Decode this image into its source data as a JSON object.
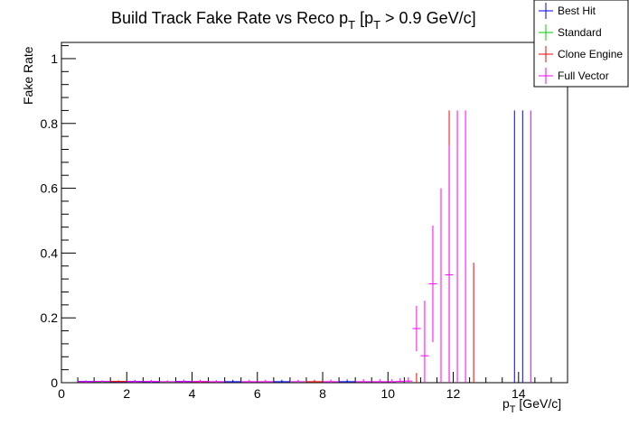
{
  "chart_data": {
    "type": "scatter",
    "title": {
      "main": "Build Track Fake Rate vs Reco p",
      "sub1": "T",
      "mid": " [p",
      "sub2": "T",
      "end": " > 0.9 GeV/c]"
    },
    "xlabel": {
      "main": "p",
      "sub": "T",
      "unit": " [GeV/c]"
    },
    "ylabel": "Fake Rate",
    "xlim": [
      0,
      15.5
    ],
    "ylim": [
      0,
      1.05
    ],
    "xticks": [
      "0",
      "2",
      "4",
      "6",
      "8",
      "10",
      "12",
      "14"
    ],
    "yticks": [
      "0",
      "0.2",
      "0.4",
      "0.6",
      "0.8",
      "1"
    ],
    "xtick_values": [
      0,
      2,
      4,
      6,
      8,
      10,
      12,
      14
    ],
    "ytick_values": [
      0,
      0.2,
      0.4,
      0.6,
      0.8,
      1.0
    ],
    "legend_position": "top-right",
    "series": [
      {
        "name": "Best Hit",
        "color": "#0000ff",
        "points": [
          {
            "x": 0.75,
            "y": 0.004,
            "xerr": 0.25,
            "yerr": 0.003
          },
          {
            "x": 1.25,
            "y": 0.004,
            "xerr": 0.25,
            "yerr": 0.003
          },
          {
            "x": 1.75,
            "y": 0.003,
            "xerr": 0.25,
            "yerr": 0.003
          },
          {
            "x": 2.25,
            "y": 0.004,
            "xerr": 0.25,
            "yerr": 0.004
          },
          {
            "x": 2.75,
            "y": 0.003,
            "xerr": 0.25,
            "yerr": 0.004
          },
          {
            "x": 3.75,
            "y": 0.004,
            "xerr": 0.25,
            "yerr": 0.005
          },
          {
            "x": 5.25,
            "y": 0.003,
            "xerr": 0.25,
            "yerr": 0.006
          },
          {
            "x": 6.75,
            "y": 0.003,
            "xerr": 0.25,
            "yerr": 0.006
          },
          {
            "x": 8.75,
            "y": 0.003,
            "xerr": 0.25,
            "yerr": 0.007
          },
          {
            "x": 13.875,
            "y": 0,
            "xerr": 0,
            "yerr": 0.84
          },
          {
            "x": 14.125,
            "y": 0,
            "xerr": 0,
            "yerr": 0.84
          }
        ]
      },
      {
        "name": "Standard",
        "color": "#00cc00",
        "points": [
          {
            "x": 1.25,
            "y": 0.003,
            "xerr": 0.25,
            "yerr": 0.003
          },
          {
            "x": 3.25,
            "y": 0.002,
            "xerr": 0.25,
            "yerr": 0.004
          },
          {
            "x": 7.25,
            "y": 0.002,
            "xerr": 0.25,
            "yerr": 0.006
          }
        ]
      },
      {
        "name": "Clone Engine",
        "color": "#ff0000",
        "points": [
          {
            "x": 1.75,
            "y": 0.004,
            "xerr": 0.25,
            "yerr": 0.003
          },
          {
            "x": 4.25,
            "y": 0.003,
            "xerr": 0.25,
            "yerr": 0.005
          },
          {
            "x": 7.75,
            "y": 0.003,
            "xerr": 0.25,
            "yerr": 0.006
          },
          {
            "x": 10.875,
            "y": 0,
            "xerr": 0,
            "yerr": 0.03
          },
          {
            "x": 11.875,
            "y": 0,
            "xerr": 0,
            "yerr": 0.84
          },
          {
            "x": 12.625,
            "y": 0,
            "xerr": 0,
            "yerr": 0.37
          }
        ]
      },
      {
        "name": "Full Vector",
        "color": "#ff00ff",
        "points": [
          {
            "x": 0.75,
            "y": 0.003,
            "xerr": 0.25,
            "yerr": 0.003
          },
          {
            "x": 1.25,
            "y": 0.004,
            "xerr": 0.25,
            "yerr": 0.003
          },
          {
            "x": 2.25,
            "y": 0.003,
            "xerr": 0.25,
            "yerr": 0.004
          },
          {
            "x": 2.75,
            "y": 0.004,
            "xerr": 0.25,
            "yerr": 0.004
          },
          {
            "x": 3.25,
            "y": 0.003,
            "xerr": 0.25,
            "yerr": 0.004
          },
          {
            "x": 3.75,
            "y": 0.003,
            "xerr": 0.25,
            "yerr": 0.005
          },
          {
            "x": 4.25,
            "y": 0.004,
            "xerr": 0.25,
            "yerr": 0.005
          },
          {
            "x": 4.75,
            "y": 0.003,
            "xerr": 0.25,
            "yerr": 0.005
          },
          {
            "x": 5.75,
            "y": 0.003,
            "xerr": 0.25,
            "yerr": 0.006
          },
          {
            "x": 6.25,
            "y": 0.003,
            "xerr": 0.25,
            "yerr": 0.006
          },
          {
            "x": 7.25,
            "y": 0.003,
            "xerr": 0.25,
            "yerr": 0.006
          },
          {
            "x": 8.25,
            "y": 0.003,
            "xerr": 0.25,
            "yerr": 0.007
          },
          {
            "x": 9.25,
            "y": 0.003,
            "xerr": 0.25,
            "yerr": 0.008
          },
          {
            "x": 9.75,
            "y": 0.003,
            "xerr": 0.25,
            "yerr": 0.008
          },
          {
            "x": 10.125,
            "y": 0.003,
            "xerr": 0.125,
            "yerr": 0.008
          },
          {
            "x": 10.375,
            "y": 0.004,
            "xerr": 0.125,
            "yerr": 0.01
          },
          {
            "x": 10.625,
            "y": 0.005,
            "xerr": 0.125,
            "yerr": 0.012
          },
          {
            "x": 10.875,
            "y": 0.167,
            "xerr": 0.125,
            "yerr": 0.07
          },
          {
            "x": 11.125,
            "y": 0.083,
            "xerr": 0.125,
            "yerr": 0.17
          },
          {
            "x": 11.375,
            "y": 0.305,
            "xerr": 0.125,
            "yerr": 0.18
          },
          {
            "x": 11.625,
            "y": 0,
            "xerr": 0,
            "yerr": 0.6
          },
          {
            "x": 11.875,
            "y": 0.333,
            "xerr": 0.125,
            "yerr": 0.4
          },
          {
            "x": 12.125,
            "y": 0,
            "xerr": 0,
            "yerr": 0.84
          },
          {
            "x": 12.375,
            "y": 0,
            "xerr": 0,
            "yerr": 0.84
          },
          {
            "x": 14.375,
            "y": 0,
            "xerr": 0,
            "yerr": 0.84
          }
        ]
      }
    ]
  }
}
